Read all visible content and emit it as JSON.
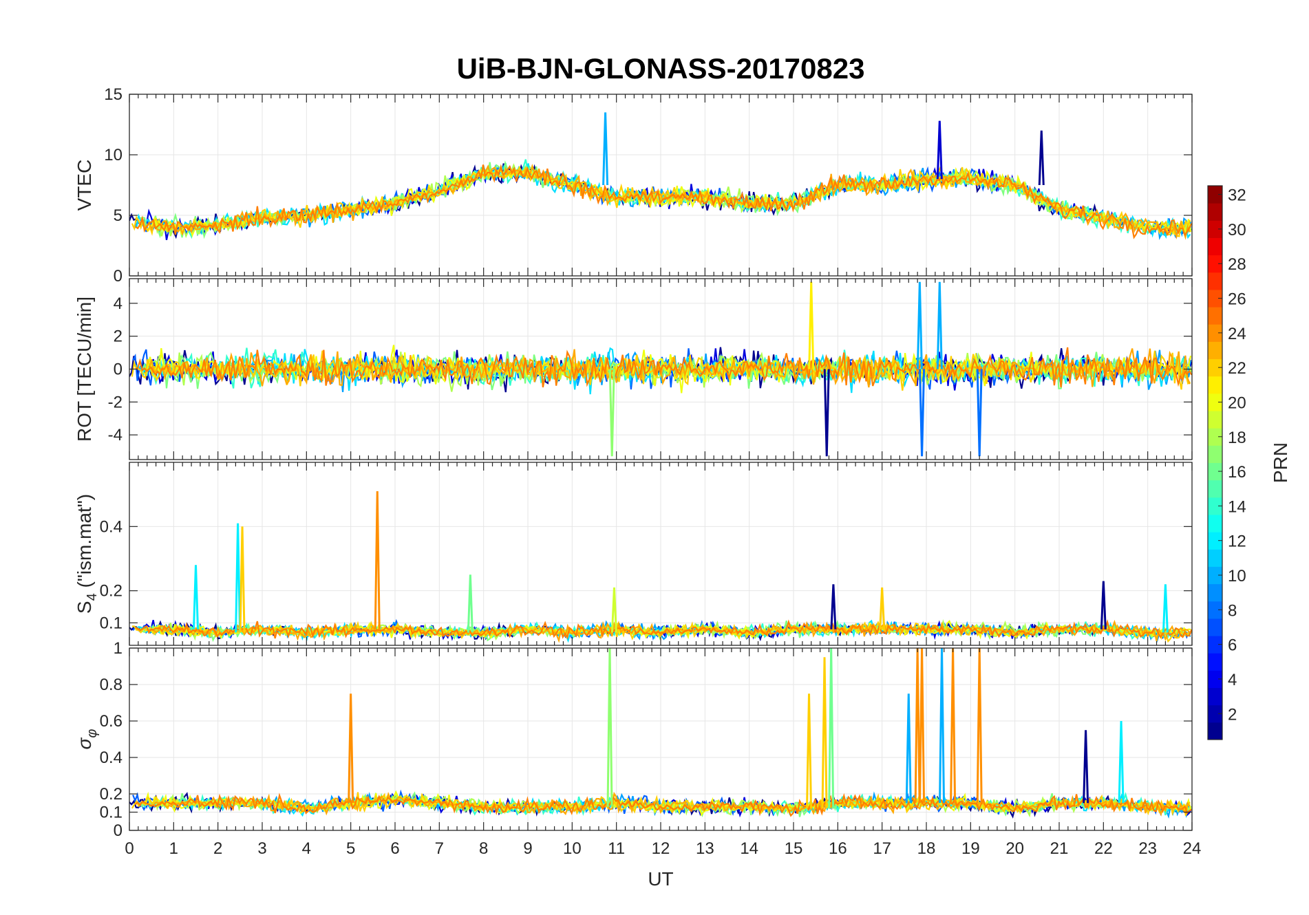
{
  "chart_data": {
    "type": "line",
    "title": "UiB-BJN-GLONASS-20170823",
    "xlabel": "UT",
    "xlim": [
      0,
      24
    ],
    "xticks": [
      "0",
      "1",
      "2",
      "3",
      "4",
      "5",
      "6",
      "7",
      "8",
      "9",
      "10",
      "11",
      "12",
      "13",
      "14",
      "15",
      "16",
      "17",
      "18",
      "19",
      "20",
      "21",
      "22",
      "23",
      "24"
    ],
    "panels": [
      {
        "name": "vtec",
        "ylabel": "VTEC",
        "ylim": [
          0,
          15
        ],
        "yticks": [
          "0",
          "5",
          "10",
          "15"
        ],
        "baseline": [
          4.5,
          4,
          4.2,
          4.8,
          5,
          5.5,
          6,
          7,
          8.5,
          8.5,
          7.5,
          6.5,
          6.5,
          6.5,
          6,
          6,
          7.5,
          7.5,
          8,
          8,
          7.5,
          5.5,
          4.8,
          4,
          4
        ],
        "noise": 1.2
      },
      {
        "name": "rot",
        "ylabel": "ROT [TECU/min]",
        "ylim": [
          -5.5,
          5.5
        ],
        "yticks": [
          "-4",
          "-2",
          "0",
          "2",
          "4"
        ],
        "baseline": [
          0,
          0,
          0,
          0,
          0,
          0,
          0,
          0,
          0,
          0,
          0,
          0,
          0,
          0,
          0,
          0,
          0,
          0,
          0,
          0,
          0,
          0,
          0,
          0,
          0
        ],
        "noise": 1.5
      },
      {
        "name": "s4",
        "ylabel": "S4 (\"ism.mat\")",
        "ylabel_main": "S",
        "ylabel_sub": "4",
        "ylabel_rest": " (\"ism.mat\")",
        "ylim": [
          0.03,
          0.6
        ],
        "yticks": [
          "0.1",
          "0.2",
          "0.4"
        ],
        "baseline": [
          0.08,
          0.08,
          0.07,
          0.08,
          0.07,
          0.08,
          0.08,
          0.07,
          0.07,
          0.08,
          0.07,
          0.08,
          0.07,
          0.08,
          0.07,
          0.08,
          0.08,
          0.08,
          0.08,
          0.08,
          0.07,
          0.08,
          0.08,
          0.07,
          0.07
        ],
        "noise": 0.03
      },
      {
        "name": "sigma",
        "ylabel": "σφ",
        "ylim": [
          0,
          1
        ],
        "yticks": [
          "0",
          "0.1",
          "0.2",
          "0.4",
          "0.6",
          "0.8",
          "1"
        ],
        "baseline": [
          0.15,
          0.15,
          0.15,
          0.15,
          0.12,
          0.15,
          0.17,
          0.15,
          0.13,
          0.13,
          0.13,
          0.15,
          0.13,
          0.13,
          0.13,
          0.12,
          0.15,
          0.15,
          0.15,
          0.15,
          0.12,
          0.15,
          0.15,
          0.13,
          0.12
        ],
        "noise": 0.06
      }
    ],
    "series": [
      {
        "name": "PRN 1",
        "prn": 1,
        "color": "#00008f"
      },
      {
        "name": "PRN 3",
        "prn": 3,
        "color": "#0000df"
      },
      {
        "name": "PRN 8",
        "prn": 8,
        "color": "#0060ff"
      },
      {
        "name": "PRN 10",
        "prn": 10,
        "color": "#00a0ff"
      },
      {
        "name": "PRN 12",
        "prn": 12,
        "color": "#00dfff"
      },
      {
        "name": "PRN 14",
        "prn": 14,
        "color": "#30ffcf"
      },
      {
        "name": "PRN 16",
        "prn": 16,
        "color": "#7fff7f"
      },
      {
        "name": "PRN 17",
        "prn": 17,
        "color": "#b0ff50"
      },
      {
        "name": "PRN 19",
        "prn": 19,
        "color": "#efff10"
      },
      {
        "name": "PRN 21",
        "prn": 21,
        "color": "#ffd000"
      },
      {
        "name": "PRN 22",
        "prn": 22,
        "color": "#ffa800"
      },
      {
        "name": "PRN 24",
        "prn": 24,
        "color": "#ff7f00"
      }
    ],
    "spikes": {
      "sigma": [
        [
          5.0,
          0.75,
          24
        ],
        [
          10.85,
          1.0,
          17
        ],
        [
          15.35,
          0.75,
          22
        ],
        [
          15.7,
          0.95,
          22
        ],
        [
          15.85,
          1.0,
          16
        ],
        [
          17.6,
          0.75,
          10
        ],
        [
          17.8,
          1.0,
          24
        ],
        [
          17.9,
          1.0,
          24
        ],
        [
          18.35,
          1.0,
          10
        ],
        [
          18.6,
          1.0,
          24
        ],
        [
          19.2,
          1.0,
          24
        ],
        [
          21.6,
          0.55,
          1
        ],
        [
          22.4,
          0.6,
          12
        ]
      ],
      "s4": [
        [
          2.45,
          0.41,
          12
        ],
        [
          2.55,
          0.4,
          22
        ],
        [
          5.6,
          0.51,
          24
        ],
        [
          1.5,
          0.28,
          12
        ],
        [
          7.7,
          0.25,
          16
        ],
        [
          10.95,
          0.21,
          19
        ],
        [
          15.9,
          0.22,
          1
        ],
        [
          17.0,
          0.21,
          22
        ],
        [
          22.0,
          0.23,
          1
        ],
        [
          23.4,
          0.22,
          12
        ]
      ],
      "rot": [
        [
          10.9,
          -5.3,
          17
        ],
        [
          15.4,
          5.3,
          21
        ],
        [
          15.75,
          -5.3,
          1
        ],
        [
          17.85,
          5.3,
          10
        ],
        [
          17.9,
          -5.3,
          8
        ],
        [
          18.3,
          5.3,
          10
        ],
        [
          19.2,
          -5.3,
          8
        ]
      ],
      "vtec": [
        [
          10.75,
          13.5,
          10
        ],
        [
          18.3,
          12.8,
          3
        ],
        [
          20.6,
          12.0,
          1
        ]
      ]
    },
    "colorbar": {
      "label": "PRN",
      "range": [
        1,
        32
      ],
      "ticks": [
        "2",
        "4",
        "6",
        "8",
        "10",
        "12",
        "14",
        "16",
        "18",
        "20",
        "22",
        "24",
        "26",
        "28",
        "30",
        "32"
      ],
      "colors": [
        "#00008f",
        "#0000af",
        "#0000cf",
        "#0000ef",
        "#0010ff",
        "#0030ff",
        "#0050ff",
        "#0070ff",
        "#008fff",
        "#00afff",
        "#00cfff",
        "#00efff",
        "#10ffef",
        "#30ffcf",
        "#50ffaf",
        "#70ff8f",
        "#8fff70",
        "#afff50",
        "#cfff30",
        "#efff10",
        "#ffef00",
        "#ffcf00",
        "#ffaf00",
        "#ff8f00",
        "#ff7000",
        "#ff5000",
        "#ff3000",
        "#ff1000",
        "#ef0000",
        "#cf0000",
        "#af0000",
        "#8f0000"
      ]
    }
  }
}
